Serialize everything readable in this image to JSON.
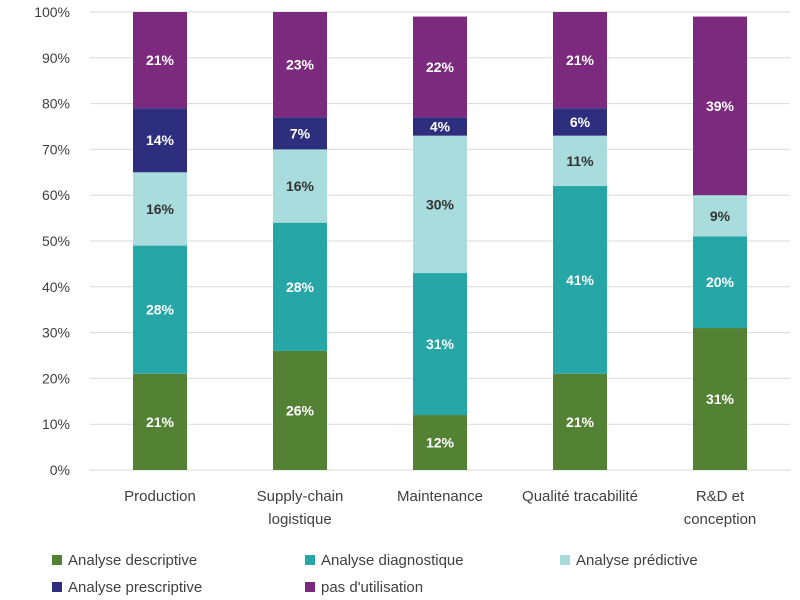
{
  "chart_data": {
    "type": "bar",
    "stacked": true,
    "percent": true,
    "title": "",
    "xlabel": "",
    "ylabel": "",
    "ylim": [
      0,
      100
    ],
    "y_ticks": [
      "0%",
      "10%",
      "20%",
      "30%",
      "40%",
      "50%",
      "60%",
      "70%",
      "80%",
      "90%",
      "100%"
    ],
    "grid": true,
    "legend_position": "bottom",
    "categories": [
      [
        "Production"
      ],
      [
        "Supply-chain",
        "logistique"
      ],
      [
        "Maintenance"
      ],
      [
        "Qualité tracabilité"
      ],
      [
        "R&D et",
        "conception"
      ]
    ],
    "series": [
      {
        "name": "Analyse descriptive",
        "color": "#548235",
        "label_color": "#ffffff",
        "values": [
          21,
          26,
          12,
          21,
          31
        ],
        "labels": [
          "21%",
          "26%",
          "12%",
          "21%",
          "31%"
        ]
      },
      {
        "name": "Analyse diagnostique",
        "color": "#26a6a6",
        "label_color": "#ffffff",
        "values": [
          28,
          28,
          31,
          41,
          20
        ],
        "labels": [
          "28%",
          "28%",
          "31%",
          "41%",
          "20%"
        ]
      },
      {
        "name": "Analyse prédictive",
        "color": "#a9dcdc",
        "label_color": "#333333",
        "values": [
          16,
          16,
          30,
          11,
          9
        ],
        "labels": [
          "16%",
          "16%",
          "30%",
          "11%",
          "9%"
        ]
      },
      {
        "name": "Analyse prescriptive",
        "color": "#2e2e7e",
        "label_color": "#ffffff",
        "values": [
          14,
          7,
          4,
          6,
          0
        ],
        "labels": [
          "14%",
          "7%",
          "4%",
          "6%",
          ""
        ]
      },
      {
        "name": "pas d'utilisation",
        "color": "#7b2a7e",
        "label_color": "#ffffff",
        "values": [
          21,
          23,
          22,
          21,
          39
        ],
        "labels": [
          "21%",
          "23%",
          "22%",
          "21%",
          "39%"
        ]
      }
    ]
  }
}
